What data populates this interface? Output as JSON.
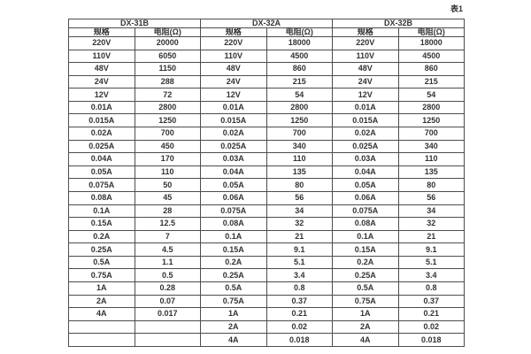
{
  "caption": "表1",
  "colors": {
    "text": "#333333",
    "border": "#4d4d4d",
    "background": "#ffffff"
  },
  "table": {
    "groups": [
      {
        "name": "DX-31B",
        "spec_header": "规格",
        "res_header": "电阻(Ω)"
      },
      {
        "name": "DX-32A",
        "spec_header": "规格",
        "res_header": "电阻(Ω)"
      },
      {
        "name": "DX-32B",
        "spec_header": "规格",
        "res_header": "电阻(Ω)"
      }
    ],
    "rows": [
      [
        "220V",
        "20000",
        "220V",
        "18000",
        "220V",
        "18000"
      ],
      [
        "110V",
        "6050",
        "110V",
        "4500",
        "110V",
        "4500"
      ],
      [
        "48V",
        "1150",
        "48V",
        "860",
        "48V",
        "860"
      ],
      [
        "24V",
        "288",
        "24V",
        "215",
        "24V",
        "215"
      ],
      [
        "12V",
        "72",
        "12V",
        "54",
        "12V",
        "54"
      ],
      [
        "0.01A",
        "2800",
        "0.01A",
        "2800",
        "0.01A",
        "2800"
      ],
      [
        "0.015A",
        "1250",
        "0.015A",
        "1250",
        "0.015A",
        "1250"
      ],
      [
        "0.02A",
        "700",
        "0.02A",
        "700",
        "0.02A",
        "700"
      ],
      [
        "0.025A",
        "450",
        "0.025A",
        "340",
        "0.025A",
        "340"
      ],
      [
        "0.04A",
        "170",
        "0.03A",
        "110",
        "0.03A",
        "110"
      ],
      [
        "0.05A",
        "110",
        "0.04A",
        "135",
        "0.04A",
        "135"
      ],
      [
        "0.075A",
        "50",
        "0.05A",
        "80",
        "0.05A",
        "80"
      ],
      [
        "0.08A",
        "45",
        "0.06A",
        "56",
        "0.06A",
        "56"
      ],
      [
        "0.1A",
        "28",
        "0.075A",
        "34",
        "0.075A",
        "34"
      ],
      [
        "0.15A",
        "12.5",
        "0.08A",
        "32",
        "0.08A",
        "32"
      ],
      [
        "0.2A",
        "7",
        "0.1A",
        "21",
        "0.1A",
        "21"
      ],
      [
        "0.25A",
        "4.5",
        "0.15A",
        "9.1",
        "0.15A",
        "9.1"
      ],
      [
        "0.5A",
        "1.1",
        "0.2A",
        "5.1",
        "0.2A",
        "5.1"
      ],
      [
        "0.75A",
        "0.5",
        "0.25A",
        "3.4",
        "0.25A",
        "3.4"
      ],
      [
        "1A",
        "0.28",
        "0.5A",
        "0.8",
        "0.5A",
        "0.8"
      ],
      [
        "2A",
        "0.07",
        "0.75A",
        "0.37",
        "0.75A",
        "0.37"
      ],
      [
        "4A",
        "0.017",
        "1A",
        "0.21",
        "1A",
        "0.21"
      ],
      [
        "",
        "",
        "2A",
        "0.02",
        "2A",
        "0.02"
      ],
      [
        "",
        "",
        "4A",
        "0.018",
        "4A",
        "0.018"
      ]
    ]
  }
}
